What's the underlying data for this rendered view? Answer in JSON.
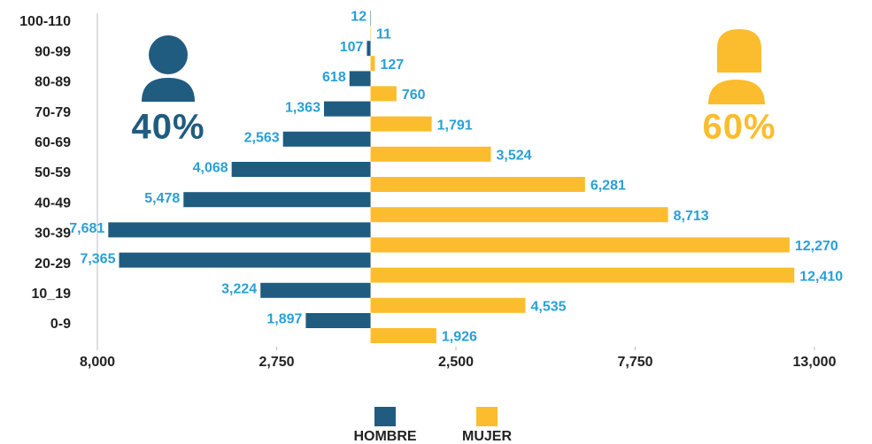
{
  "chart_data": {
    "type": "pyramid",
    "categories": [
      "100-110",
      "90-99",
      "80-89",
      "70-79",
      "60-69",
      "50-59",
      "40-49",
      "30-39",
      "20-29",
      "10_19",
      "0-9"
    ],
    "series": [
      {
        "name": "HOMBRE",
        "color": "#1f5c80",
        "side": "left",
        "values": [
          -12,
          -107,
          -618,
          -1363,
          -2563,
          -4068,
          -5478,
          -7681,
          -7365,
          -3224,
          -1897
        ],
        "value_labels": [
          "12",
          "107",
          "618",
          "1,363",
          "2,563",
          "4,068",
          "5,478",
          "7,681",
          "7,365",
          "3,224",
          "1,897"
        ]
      },
      {
        "name": "MUJER",
        "color": "#fbbd2d",
        "side": "right",
        "values": [
          11,
          127,
          760,
          1791,
          3524,
          6281,
          8713,
          12270,
          12410,
          4535,
          1926
        ],
        "value_labels": [
          "11",
          "127",
          "760",
          "1,791",
          "3,524",
          "6,281",
          "8,713",
          "12,270",
          "12,410",
          "4,535",
          "1,926"
        ]
      }
    ],
    "annotations": [
      {
        "text": "40%",
        "color": "#1f5c80"
      },
      {
        "text": "60%",
        "color": "#fbbd2d"
      }
    ],
    "xlim": [
      -8000,
      13000
    ],
    "xticks": [
      {
        "value": -8000,
        "label": "8,000"
      },
      {
        "value": -2750,
        "label": "2,750"
      },
      {
        "value": 2500,
        "label": "2,500"
      },
      {
        "value": 7750,
        "label": "7,750"
      },
      {
        "value": 13000,
        "label": "13,000"
      }
    ],
    "label_color": "#2a9fd6",
    "legend": "bottom"
  }
}
